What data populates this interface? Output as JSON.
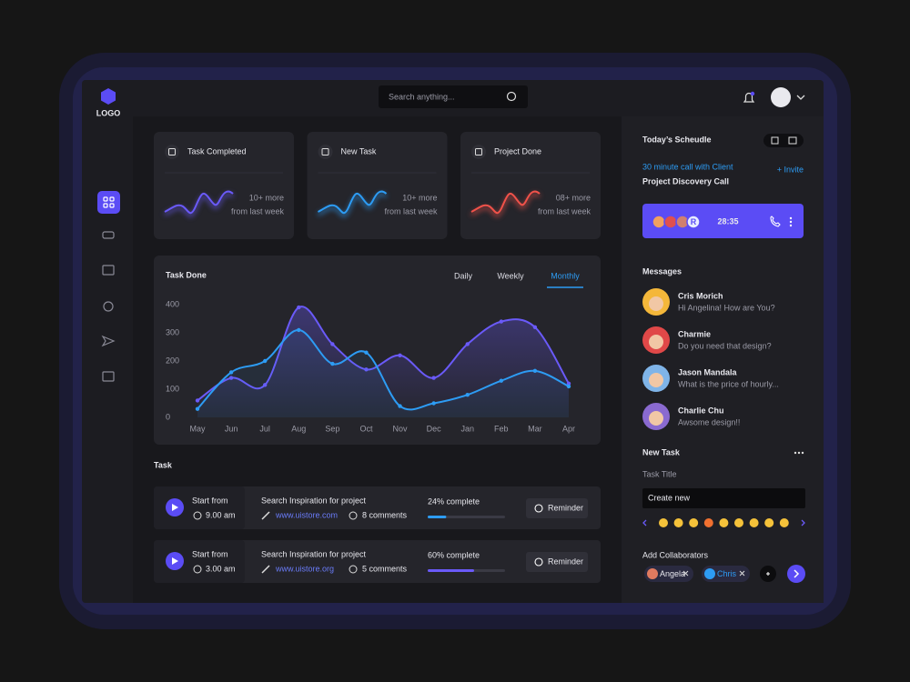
{
  "logo": "LOGO",
  "search_placeholder": "Search anything...",
  "stat_cards": [
    {
      "title": "Task Completed",
      "change": "10+ more",
      "period": "from last week"
    },
    {
      "title": "New Task",
      "change": "10+ more",
      "period": "from last week"
    },
    {
      "title": "Project Done",
      "change": "08+ more",
      "period": "from last week"
    }
  ],
  "chart_data": {
    "type": "line",
    "title": "Task Done",
    "tabs": [
      "Daily",
      "Weekly",
      "Monthly"
    ],
    "active_tab": 2,
    "categories": [
      "May",
      "Jun",
      "Jul",
      "Aug",
      "Sep",
      "Oct",
      "Nov",
      "Dec",
      "Jan",
      "Feb",
      "Mar",
      "Apr"
    ],
    "series": [
      {
        "color": "#6a5af9",
        "values": [
          60,
          140,
          115,
          390,
          260,
          170,
          220,
          140,
          260,
          340,
          320,
          120
        ]
      },
      {
        "color": "#2d9cf4",
        "values": [
          30,
          160,
          200,
          310,
          190,
          230,
          40,
          50,
          80,
          130,
          165,
          110
        ]
      }
    ],
    "ylim": [
      0,
      400
    ],
    "yticks": [
      0,
      100,
      200,
      300,
      400
    ],
    "area": true
  },
  "tasks": {
    "title": "Task",
    "items": [
      {
        "start_label": "Start from",
        "time": "9.00 am",
        "name": "Search Inspiration for project",
        "link": "www.uistore.com",
        "comments": "8 comments",
        "progress": 24,
        "progress_label": "24% complete",
        "button": "Reminder",
        "color": "#2d9cf4"
      },
      {
        "start_label": "Start from",
        "time": "3.00 am",
        "name": "Search Inspiration for project",
        "link": "www.uistore.org",
        "comments": "5 comments",
        "progress": 60,
        "progress_label": "60% complete",
        "button": "Reminder",
        "color": "#6a5af9"
      }
    ]
  },
  "schedule": {
    "title": "Today’s Scheudle",
    "subtitle": "30 minute call with Client",
    "invite": "+ Invite",
    "call_title": "Project Discovery Call",
    "avatar_initial": "R",
    "timer": "28:35"
  },
  "messages": {
    "title": "Messages",
    "items": [
      {
        "name": "Cris Morich",
        "text": "Hi Angelina! How are You?"
      },
      {
        "name": "Charmie",
        "text": "Do you need that design?"
      },
      {
        "name": "Jason Mandala",
        "text": "What is the price of hourly..."
      },
      {
        "name": "Charlie Chu",
        "text": "Awsome design!!"
      }
    ]
  },
  "new_task": {
    "title": "New Task",
    "field_label": "Task Title",
    "field_value": "Create new",
    "collaborators_label": "Add Collaborators",
    "collaborators": [
      "Angela",
      "Chris"
    ]
  }
}
